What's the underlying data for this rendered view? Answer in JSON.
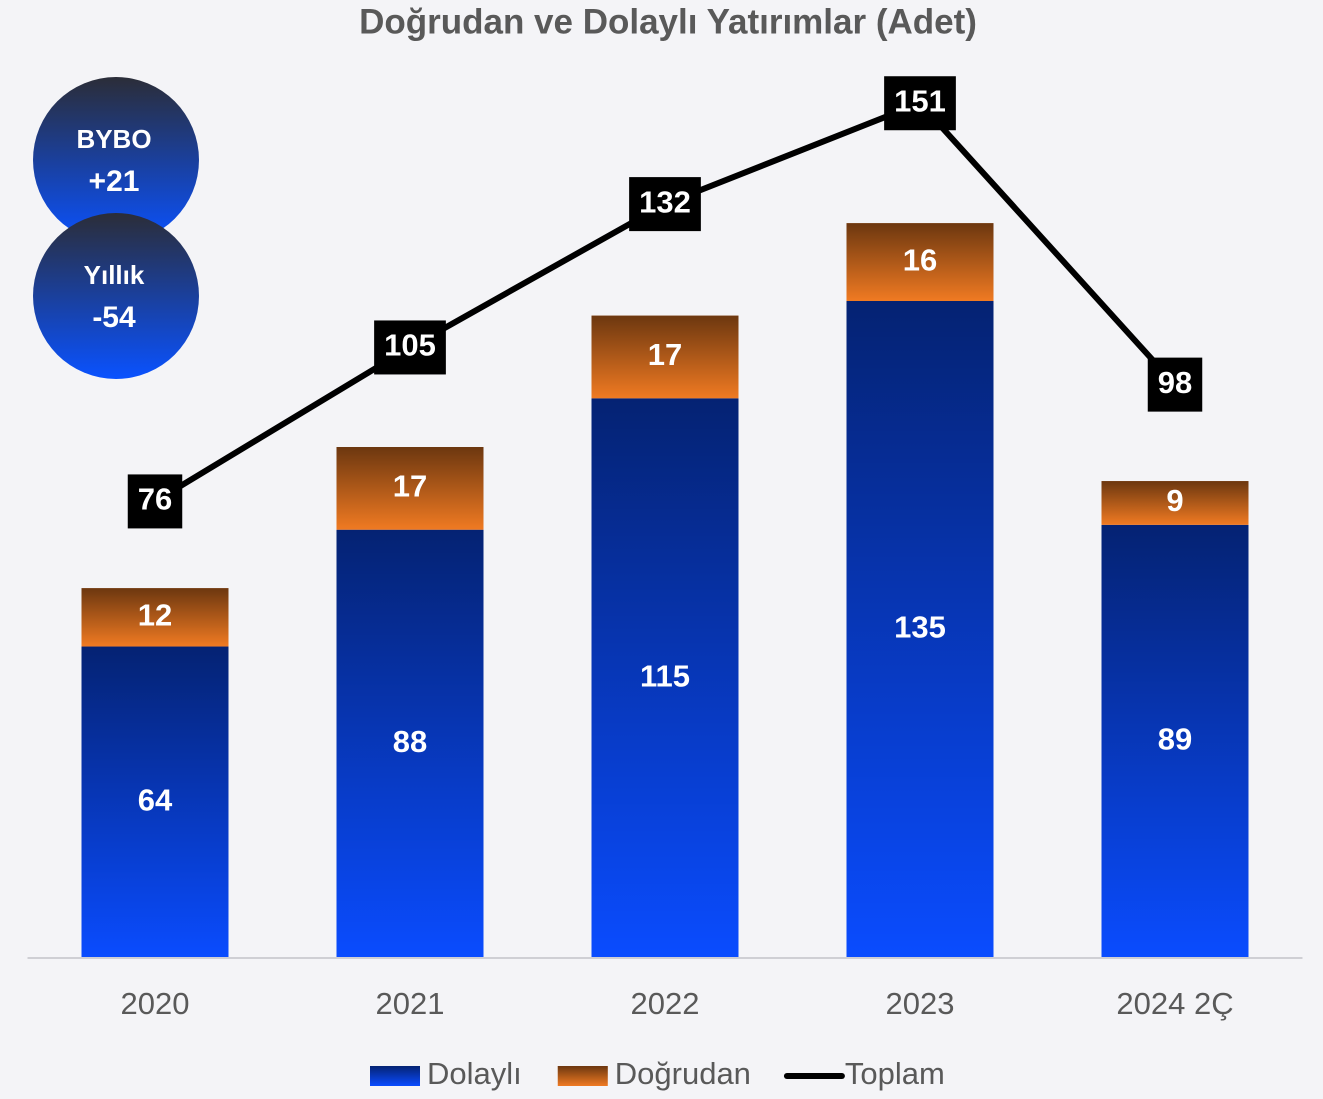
{
  "chart_data": {
    "type": "stacked-bar-line",
    "title": "Doğrudan ve Dolaylı Yatırımlar (Adet)",
    "categories": [
      "2020",
      "2021",
      "2022",
      "2023",
      "2024 2Ç"
    ],
    "series": [
      {
        "name": "Dolaylı",
        "color": "#0a4cff",
        "values": [
          64,
          88,
          115,
          135,
          89
        ]
      },
      {
        "name": "Doğrudan",
        "color": "#f07a22",
        "values": [
          12,
          17,
          17,
          16,
          9
        ]
      },
      {
        "name": "Toplam",
        "color": "#000000",
        "type": "line",
        "axis": "y2",
        "values": [
          76,
          105,
          132,
          151,
          98
        ]
      }
    ],
    "ylim": [
      0,
      180
    ],
    "y2lim": [
      -10,
      155
    ],
    "annotations": [
      {
        "label": "BYBO",
        "text": "+21"
      },
      {
        "label": "Yıllık",
        "text": "-54"
      }
    ],
    "legend": "bottom"
  }
}
